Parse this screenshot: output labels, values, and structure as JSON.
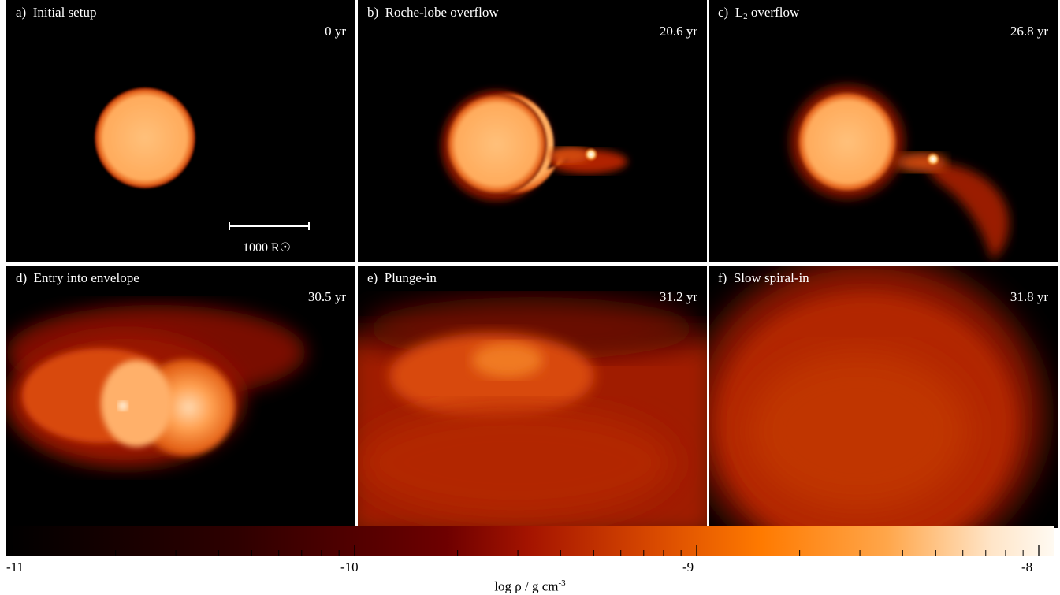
{
  "panels": [
    {
      "letter": "a)",
      "title": "Initial setup",
      "time": "0 yr"
    },
    {
      "letter": "b)",
      "title": "Roche-lobe overflow",
      "time": "20.6 yr"
    },
    {
      "letter": "c)",
      "title_prefix": "L",
      "title_sub": "2",
      "title_suffix": " overflow",
      "time": "26.8 yr"
    },
    {
      "letter": "d)",
      "title": "Entry into envelope",
      "time": "30.5 yr"
    },
    {
      "letter": "e)",
      "title": "Plunge-in",
      "time": "31.2 yr"
    },
    {
      "letter": "f)",
      "title": "Slow spiral-in",
      "time": "31.8 yr"
    }
  ],
  "scale_bar": {
    "label": "1000 R☉"
  },
  "colorbar": {
    "title_prefix": "log ρ / g cm",
    "title_sup": "-3",
    "ticks": [
      "-11",
      "-10",
      "-9",
      "-8"
    ],
    "range": [
      -11,
      -8
    ],
    "colors": [
      "#000000",
      "#6e0000",
      "#a51400",
      "#ff7a00",
      "#fffaf2"
    ]
  }
}
